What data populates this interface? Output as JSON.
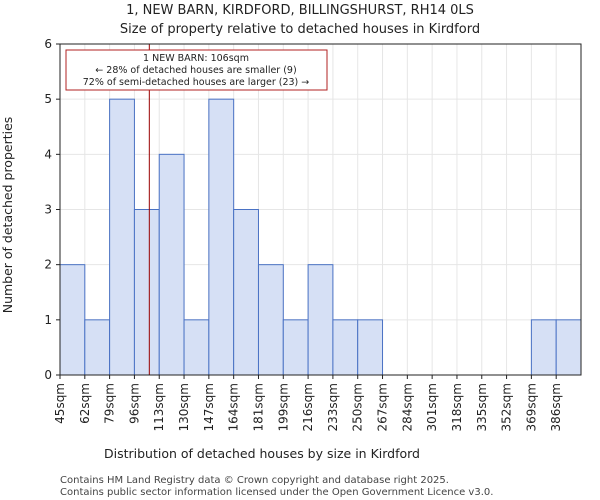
{
  "chart_data": {
    "type": "bar",
    "title": "1, NEW BARN, KIRDFORD, BILLINGSHURST, RH14 0LS",
    "subtitle": "Size of property relative to detached houses in Kirdford",
    "xlabel": "Distribution of detached houses by size in Kirdford",
    "ylabel": "Number of detached properties",
    "categories": [
      "45sqm",
      "62sqm",
      "79sqm",
      "96sqm",
      "113sqm",
      "130sqm",
      "147sqm",
      "164sqm",
      "181sqm",
      "199sqm",
      "216sqm",
      "233sqm",
      "250sqm",
      "267sqm",
      "284sqm",
      "301sqm",
      "318sqm",
      "335sqm",
      "352sqm",
      "369sqm",
      "386sqm"
    ],
    "values": [
      2,
      1,
      5,
      3,
      4,
      1,
      5,
      3,
      2,
      1,
      2,
      1,
      1,
      0,
      0,
      0,
      0,
      0,
      0,
      1,
      1
    ],
    "ylim": [
      0,
      6
    ],
    "yticks": [
      "0",
      "1",
      "2",
      "3",
      "4",
      "5",
      "6"
    ],
    "marker_value_index": 3.6,
    "annotation": {
      "line1": "1 NEW BARN: 106sqm",
      "line2": "← 28% of detached houses are smaller (9)",
      "line3": "72% of semi-detached houses are larger (23) →"
    },
    "colors": {
      "bar_fill": "#d6e0f5",
      "bar_edge": "#4a72c4",
      "marker": "#990000",
      "axis": "#222222"
    }
  },
  "footer": {
    "line1": "Contains HM Land Registry data © Crown copyright and database right 2025.",
    "line2": "Contains public sector information licensed under the Open Government Licence v3.0."
  }
}
